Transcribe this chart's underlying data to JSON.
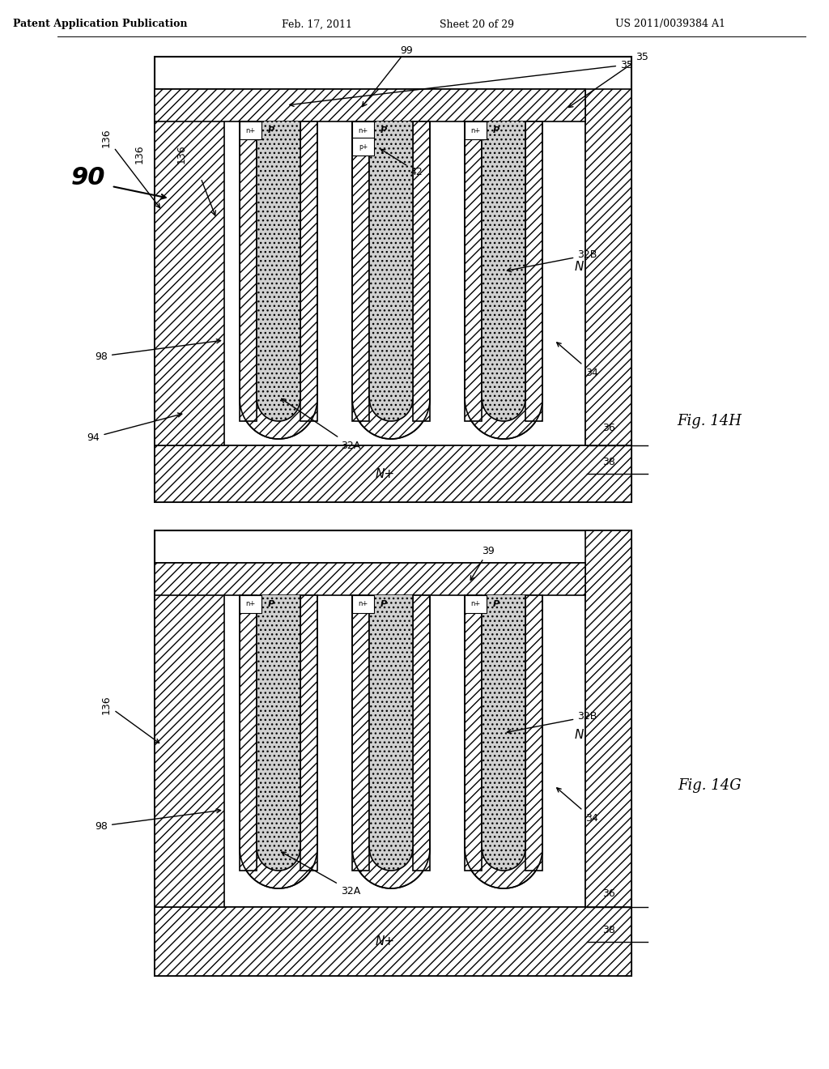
{
  "bg_color": "#ffffff",
  "header_text": "Patent Application Publication",
  "header_date": "Feb. 17, 2011",
  "header_sheet": "Sheet 20 of 29",
  "header_patent": "US 2011/0039384 A1",
  "fig14h_label": "Fig. 14H",
  "fig14g_label": "Fig. 14G",
  "label_90": "90",
  "label_94": "94",
  "label_98_top": "98",
  "label_98_bot": "98",
  "label_136_top": "136",
  "label_136_bot": "136",
  "label_99": "99",
  "label_35_top": "35",
  "label_35_bot": "35",
  "label_39": "39",
  "label_42": "42",
  "label_32A_top": "32A",
  "label_32A_bot": "32A",
  "label_32B_top": "32B",
  "label_32B_bot": "32B",
  "label_34_top": "34",
  "label_34_bot": "34",
  "label_36_top": "36",
  "label_36_bot": "36",
  "label_38_top": "38",
  "label_38_bot": "38",
  "label_N_top": "N",
  "label_N_bot": "N",
  "label_Nplus_top": "N+",
  "label_Nplus_bot": "N+",
  "hatch_color": "#000000",
  "dot_color": "#c8c8c8",
  "line_color": "#000000",
  "hatch_pattern": "///",
  "dot_pattern": "...",
  "font_size_label": 9,
  "font_size_fig": 12,
  "font_size_header": 8
}
